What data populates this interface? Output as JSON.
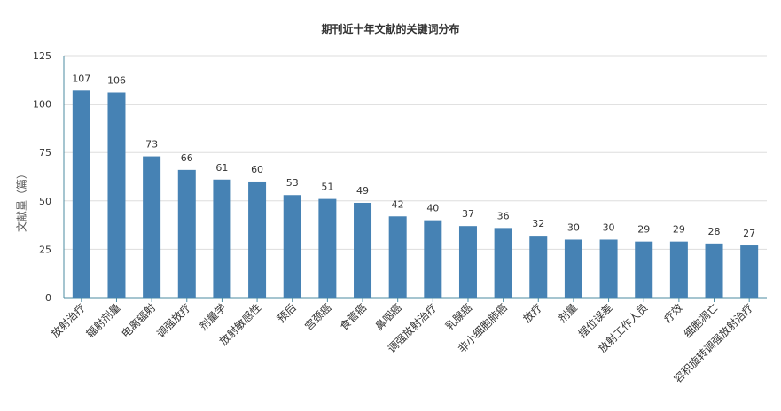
{
  "chart_data": {
    "type": "bar",
    "title": "期刊近十年文献的关键词分布",
    "ylabel": "文献量（篇）",
    "xlabel": "",
    "ylim": [
      0,
      125
    ],
    "yticks": [
      0,
      25,
      50,
      75,
      100,
      125
    ],
    "grid": true,
    "bar_color": "#4682b4",
    "categories": [
      "放射治疗",
      "辐射剂量",
      "电离辐射",
      "调强放疗",
      "剂量学",
      "放射敏感性",
      "预后",
      "宫颈癌",
      "食管癌",
      "鼻咽癌",
      "调强放射治疗",
      "乳腺癌",
      "非小细胞肺癌",
      "放疗",
      "剂量",
      "摆位误差",
      "放射工作人员",
      "疗效",
      "细胞凋亡",
      "容积旋转调强放射治疗"
    ],
    "values": [
      107,
      106,
      73,
      66,
      61,
      60,
      53,
      51,
      49,
      42,
      40,
      37,
      36,
      32,
      30,
      30,
      29,
      29,
      28,
      27
    ]
  }
}
